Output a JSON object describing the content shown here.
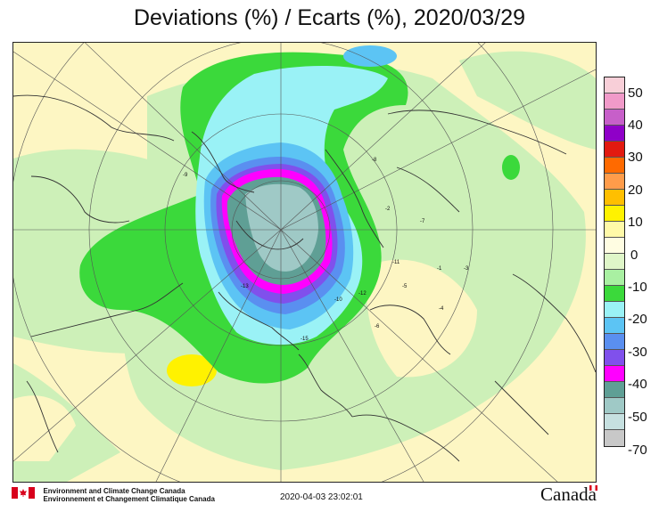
{
  "title": "Deviations (%) / Ecarts (%), 2020/03/29",
  "legend": {
    "labels": [
      "50",
      "40",
      "30",
      "20",
      "10",
      "0",
      "-10",
      "-20",
      "-30",
      "-40",
      "-50",
      "-70"
    ],
    "colors": [
      "#f8cfd8",
      "#f19ac9",
      "#c75fc9",
      "#8f00c8",
      "#e21a10",
      "#ff6a00",
      "#ff9c4a",
      "#ffbf00",
      "#fff200",
      "#fff9a8",
      "#fffde2",
      "#dff6c8",
      "#a9f0a2",
      "#3bd93b",
      "#9af2f6",
      "#5cc4f4",
      "#5a8ff0",
      "#8050ec",
      "#ff00ff",
      "#5f9f95",
      "#9fc9c6",
      "#c6e0e0",
      "#c8c8c8"
    ]
  },
  "map": {
    "colors": {
      "neutral": "#fdf6c3",
      "light_green": "#cdf0b8",
      "green": "#3bd93b",
      "cyan": "#9af2f6",
      "blue": "#5cc4f4",
      "med_blue": "#5a8ff0",
      "purple": "#8050ec",
      "magenta": "#ff00ff",
      "teal": "#5f9f95",
      "pale_teal": "#9fc9c6",
      "yellow": "#fff200"
    },
    "station_labels": [
      "-15",
      "-12",
      "-10",
      "-11",
      "-5",
      "-7",
      "-3",
      "-1",
      "-2",
      "-8",
      "-6",
      "-9",
      "-4",
      "-13"
    ]
  },
  "footer": {
    "dept_en": "Environment and Climate Change Canada",
    "dept_fr": "Environnement et Changement Climatique Canada",
    "timestamp": "2020-04-03 23:02:01",
    "wordmark": "Canada"
  }
}
